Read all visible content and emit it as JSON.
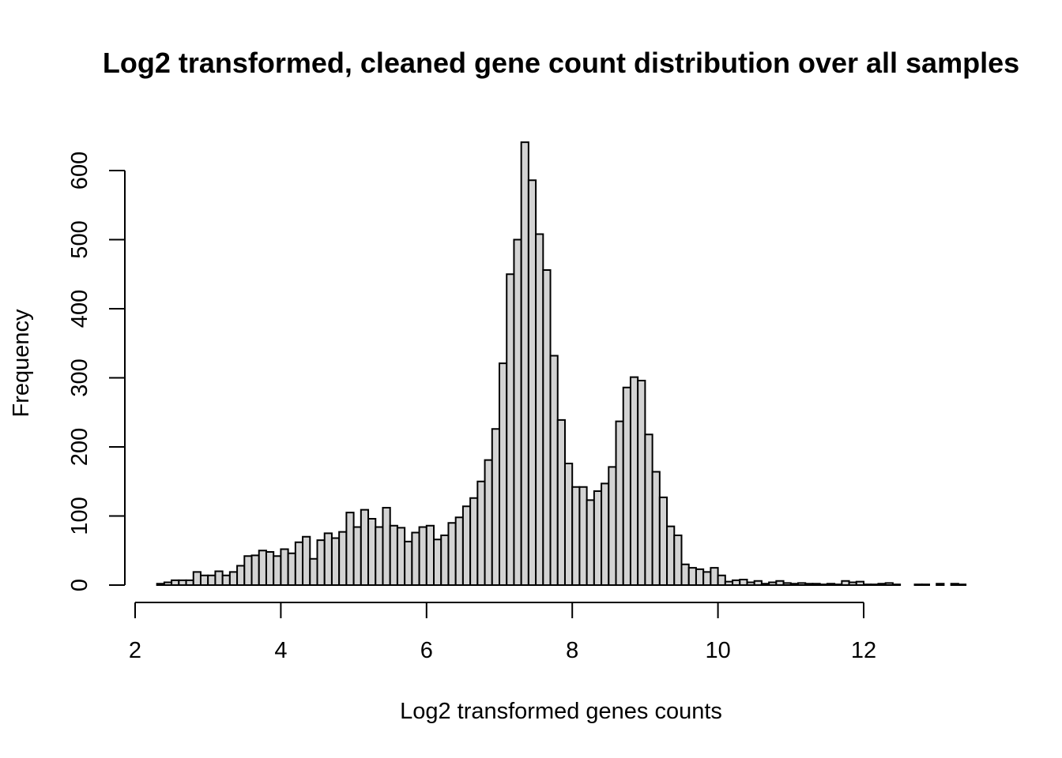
{
  "chart_data": {
    "type": "bar",
    "subtype": "histogram",
    "title": "Log2 transformed, cleaned gene count distribution over all samples",
    "xlabel": "Log2 transformed genes counts",
    "ylabel": "Frequency",
    "xlim": [
      2,
      13.5
    ],
    "ylim": [
      0,
      640
    ],
    "x_ticks": [
      2,
      4,
      6,
      8,
      10,
      12
    ],
    "y_ticks": [
      0,
      100,
      200,
      300,
      400,
      500,
      600
    ],
    "bin_start": 2.3,
    "bin_width": 0.1,
    "values": [
      2,
      4,
      7,
      7,
      7,
      19,
      14,
      14,
      20,
      14,
      19,
      28,
      42,
      43,
      50,
      48,
      42,
      52,
      46,
      62,
      70,
      38,
      65,
      75,
      68,
      77,
      105,
      84,
      109,
      96,
      84,
      112,
      86,
      83,
      63,
      76,
      84,
      86,
      66,
      72,
      90,
      98,
      114,
      126,
      150,
      181,
      226,
      321,
      450,
      500,
      641,
      586,
      508,
      456,
      332,
      239,
      176,
      142,
      142,
      123,
      136,
      147,
      171,
      237,
      286,
      301,
      296,
      218,
      164,
      127,
      85,
      72,
      30,
      25,
      23,
      19,
      25,
      14,
      5,
      7,
      8,
      4,
      6,
      2,
      4,
      6,
      3,
      2,
      3,
      2,
      2,
      1,
      2,
      1,
      6,
      4,
      5,
      1,
      1,
      2,
      3,
      1,
      0,
      0,
      1,
      1,
      0,
      2,
      0,
      2,
      1
    ],
    "fill_color": "#d3d3d3",
    "border_color": "#000000"
  }
}
